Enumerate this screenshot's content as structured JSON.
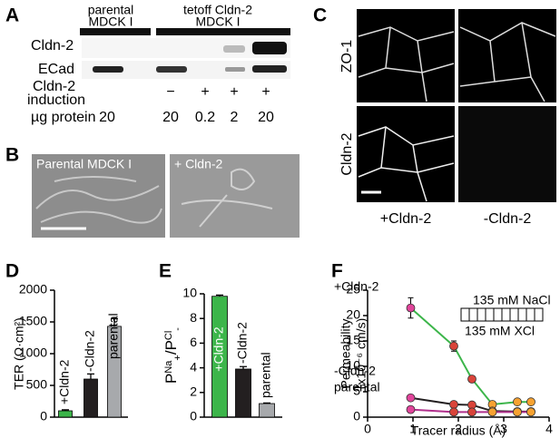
{
  "panel_a": {
    "label": "A",
    "header_parental": [
      "parental",
      "MDCK I"
    ],
    "header_tetoff": [
      "tetoff Cldn-2",
      "MDCK I"
    ],
    "rows": [
      "Cldn-2",
      "ECad"
    ],
    "induction_label": [
      "Cldn-2",
      "induction"
    ],
    "induction": [
      "−",
      "+",
      "+",
      "+"
    ],
    "protein_label": "µg protein",
    "protein": [
      "20",
      "20",
      "0.2",
      "2",
      "20"
    ]
  },
  "panel_b": {
    "label": "B",
    "images": [
      "Parental MDCK I",
      "+ Cldn-2"
    ]
  },
  "panel_c": {
    "label": "C",
    "rows": [
      "ZO-1",
      "Cldn-2"
    ],
    "columns": [
      "+Cldn-2",
      "-Cldn-2"
    ]
  },
  "chart_data": [
    {
      "type": "bar",
      "label": "D",
      "ylabel": "TER (Ω·cm²)",
      "categories": [
        "+Cldn-2",
        "-Cldn-2",
        "parental"
      ],
      "values": [
        100,
        600,
        1430
      ],
      "errors": [
        15,
        80,
        120
      ],
      "colors": [
        "#3cb54a",
        "#231f20",
        "#a7a9ac"
      ],
      "ylim": [
        0,
        2000
      ],
      "yticks": [
        0,
        500,
        1000,
        1500,
        2000
      ]
    },
    {
      "type": "bar",
      "label": "E",
      "ylabel": [
        "P",
        "Na",
        "+",
        "/P",
        "Cl",
        "-"
      ],
      "categories": [
        "+Cldn-2",
        "-Cldn-2",
        "parental"
      ],
      "values": [
        9.8,
        3.9,
        1.1
      ],
      "errors": [
        0.1,
        0.2,
        0.05
      ],
      "colors": [
        "#3cb54a",
        "#231f20",
        "#a7a9ac"
      ],
      "ylim": [
        0,
        10
      ],
      "yticks": [
        0,
        2,
        4,
        6,
        8,
        10
      ]
    },
    {
      "type": "line",
      "label": "F",
      "ylabel": [
        "Permeability",
        "(x10⁻⁶ cm/s)"
      ],
      "xlabel": "Tracer radius (Å)",
      "annotations": [
        "135 mM NaCl",
        "135 mM XCl"
      ],
      "x": [
        0.95,
        1.9,
        2.3,
        2.75,
        3.3,
        3.6
      ],
      "point_colors": [
        "#e0449a",
        "#d9443a",
        "#d9443a",
        "#f7a231",
        "#f7a231",
        "#f7a231"
      ],
      "series": [
        {
          "name": "+Cldn-2",
          "color": "#3cb54a",
          "values": [
            21.5,
            14,
            7.5,
            2.5,
            3,
            3
          ],
          "errors": [
            2,
            1,
            null,
            null,
            null,
            null
          ]
        },
        {
          "name": "-Cldn-2",
          "color": "#231f20",
          "values": [
            3.8,
            2.5,
            2.4,
            1.2,
            1.1,
            1.1
          ]
        },
        {
          "name": "parental",
          "color": "#b0308c",
          "values": [
            1.5,
            1,
            1,
            1,
            1,
            1
          ]
        }
      ],
      "xlim": [
        0,
        4
      ],
      "xticks": [
        0,
        1,
        2,
        3,
        4
      ],
      "ylim": [
        0,
        25
      ],
      "yticks": [
        0,
        5,
        10,
        15,
        20,
        25
      ]
    }
  ]
}
